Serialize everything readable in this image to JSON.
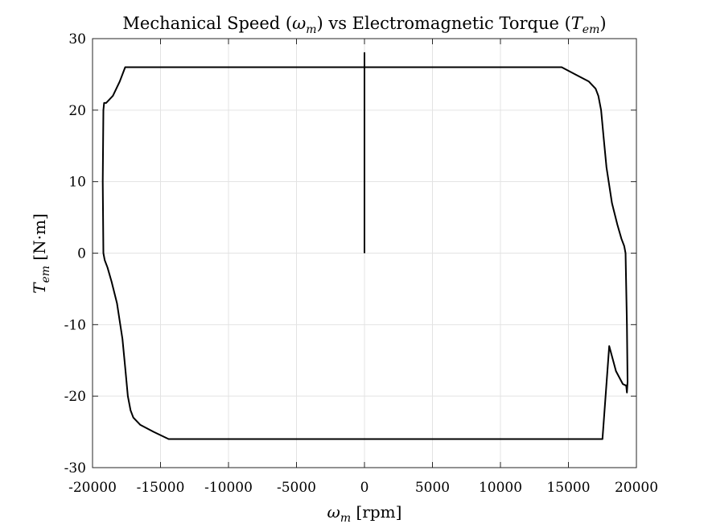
{
  "chart_data": {
    "type": "line",
    "title": {
      "prefix": "Mechanical Speed (",
      "omega": "ω",
      "omega_sub": "m",
      "middle": ") vs Electromagnetic Torque (",
      "T": "T",
      "T_sub": "em",
      "suffix": ")"
    },
    "xlabel": {
      "sym": "ω",
      "sub": "m",
      "unit": " [rpm]"
    },
    "ylabel": {
      "sym": "T",
      "sub": "em",
      "unit": " [N·m]"
    },
    "xlim": [
      -20000,
      20000
    ],
    "ylim": [
      -30,
      30
    ],
    "x_ticks": [
      {
        "v": -20000,
        "label": "-20000"
      },
      {
        "v": -15000,
        "label": "-15000"
      },
      {
        "v": -10000,
        "label": "-10000"
      },
      {
        "v": -5000,
        "label": "-5000"
      },
      {
        "v": 0,
        "label": "0"
      },
      {
        "v": 5000,
        "label": "5000"
      },
      {
        "v": 10000,
        "label": "10000"
      },
      {
        "v": 15000,
        "label": "15000"
      },
      {
        "v": 20000,
        "label": "20000"
      }
    ],
    "y_ticks": [
      {
        "v": 30,
        "label": "30"
      },
      {
        "v": 20,
        "label": "20"
      },
      {
        "v": 10,
        "label": "10"
      },
      {
        "v": 0,
        "label": "0"
      },
      {
        "v": -10,
        "label": "-10"
      },
      {
        "v": -20,
        "label": "-20"
      },
      {
        "v": -30,
        "label": "-30"
      }
    ],
    "grid": true,
    "line_color": "#000000",
    "series": [
      {
        "x": [
          0,
          0,
          0,
          2000,
          6000,
          10000,
          14500,
          15500,
          16500,
          17000,
          17200,
          17400,
          17600,
          17800,
          18200,
          18600,
          18900,
          19100,
          19200,
          19300,
          19350,
          19300,
          19250,
          19200,
          19000,
          18500,
          18000,
          17500,
          17000,
          16500,
          15000,
          14000,
          10000,
          5000,
          0,
          -5000,
          -10000,
          -14400,
          -15500,
          -16500,
          -17000,
          -17200,
          -17400,
          -17600,
          -17800,
          -18200,
          -18600,
          -18900,
          -19100,
          -19200,
          -19250,
          -19200,
          -19150,
          -19100,
          -19000,
          -18500,
          -18000,
          -17600,
          -5000,
          0,
          0
        ],
        "y": [
          0,
          28,
          26,
          26,
          26,
          26,
          26,
          25,
          24,
          23,
          22,
          20,
          16,
          12,
          7,
          4,
          2,
          1,
          0,
          -10,
          -18,
          -19.5,
          -18.5,
          -18.5,
          -18.3,
          -16.5,
          -13,
          -26,
          -26,
          -26,
          -26,
          -26,
          -26,
          -26,
          -26,
          -26,
          -26,
          -26,
          -25,
          -24,
          -23,
          -22,
          -20,
          -16,
          -12,
          -7,
          -4,
          -2,
          -1,
          0,
          10,
          20,
          21,
          21,
          21,
          22,
          24,
          26,
          26,
          26,
          0
        ]
      }
    ]
  }
}
